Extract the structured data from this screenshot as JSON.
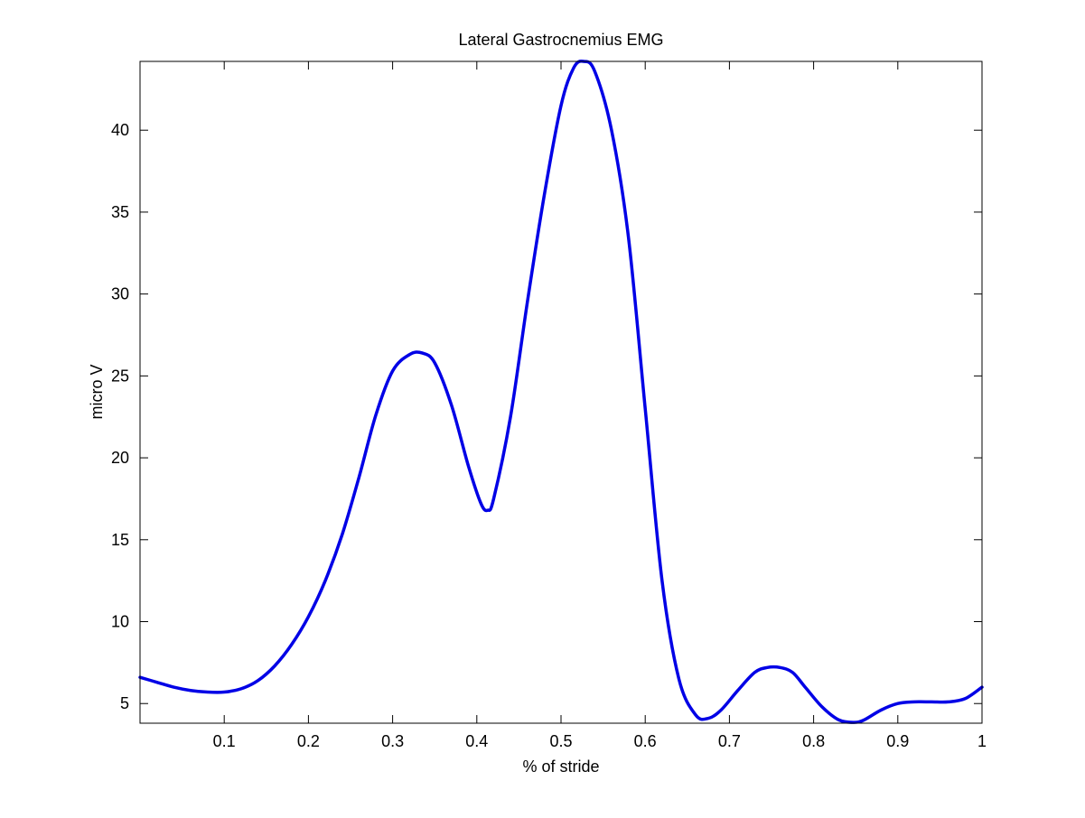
{
  "chart_data": {
    "type": "line",
    "title": "Lateral Gastrocnemius EMG",
    "xlabel": "% of stride",
    "ylabel": "micro V",
    "xlim": [
      0,
      1
    ],
    "ylim": [
      3.8,
      44.2
    ],
    "xticks": [
      0.1,
      0.2,
      0.3,
      0.4,
      0.5,
      0.6,
      0.7,
      0.8,
      0.9,
      1
    ],
    "xtick_labels": [
      "0.1",
      "0.2",
      "0.3",
      "0.4",
      "0.5",
      "0.6",
      "0.7",
      "0.8",
      "0.9",
      "1"
    ],
    "yticks": [
      5,
      10,
      15,
      20,
      25,
      30,
      35,
      40
    ],
    "ytick_labels": [
      "5",
      "10",
      "15",
      "20",
      "25",
      "30",
      "35",
      "40"
    ],
    "grid": false,
    "box": true,
    "series": [
      {
        "color": "#0000e6",
        "x": [
          0,
          0.02,
          0.04,
          0.06,
          0.08,
          0.1,
          0.12,
          0.14,
          0.16,
          0.18,
          0.2,
          0.22,
          0.24,
          0.26,
          0.28,
          0.3,
          0.32,
          0.335,
          0.35,
          0.37,
          0.39,
          0.405,
          0.413,
          0.42,
          0.44,
          0.46,
          0.48,
          0.5,
          0.515,
          0.527,
          0.54,
          0.56,
          0.58,
          0.6,
          0.62,
          0.64,
          0.66,
          0.675,
          0.69,
          0.71,
          0.73,
          0.745,
          0.76,
          0.775,
          0.79,
          0.81,
          0.83,
          0.848,
          0.86,
          0.88,
          0.9,
          0.92,
          0.94,
          0.96,
          0.98,
          1.0
        ],
        "y": [
          6.6,
          6.3,
          6.0,
          5.8,
          5.7,
          5.7,
          5.9,
          6.4,
          7.3,
          8.6,
          10.3,
          12.5,
          15.3,
          18.8,
          22.6,
          25.3,
          26.3,
          26.4,
          25.8,
          23.2,
          19.5,
          17.2,
          16.8,
          17.5,
          22.5,
          29.5,
          36.0,
          41.5,
          43.8,
          44.2,
          43.6,
          40.0,
          33.5,
          23.0,
          12.5,
          6.5,
          4.3,
          4.1,
          4.6,
          5.8,
          6.9,
          7.2,
          7.2,
          6.9,
          6.0,
          4.8,
          4.0,
          3.85,
          4.0,
          4.6,
          5.0,
          5.1,
          5.1,
          5.1,
          5.3,
          6.0
        ]
      }
    ]
  }
}
